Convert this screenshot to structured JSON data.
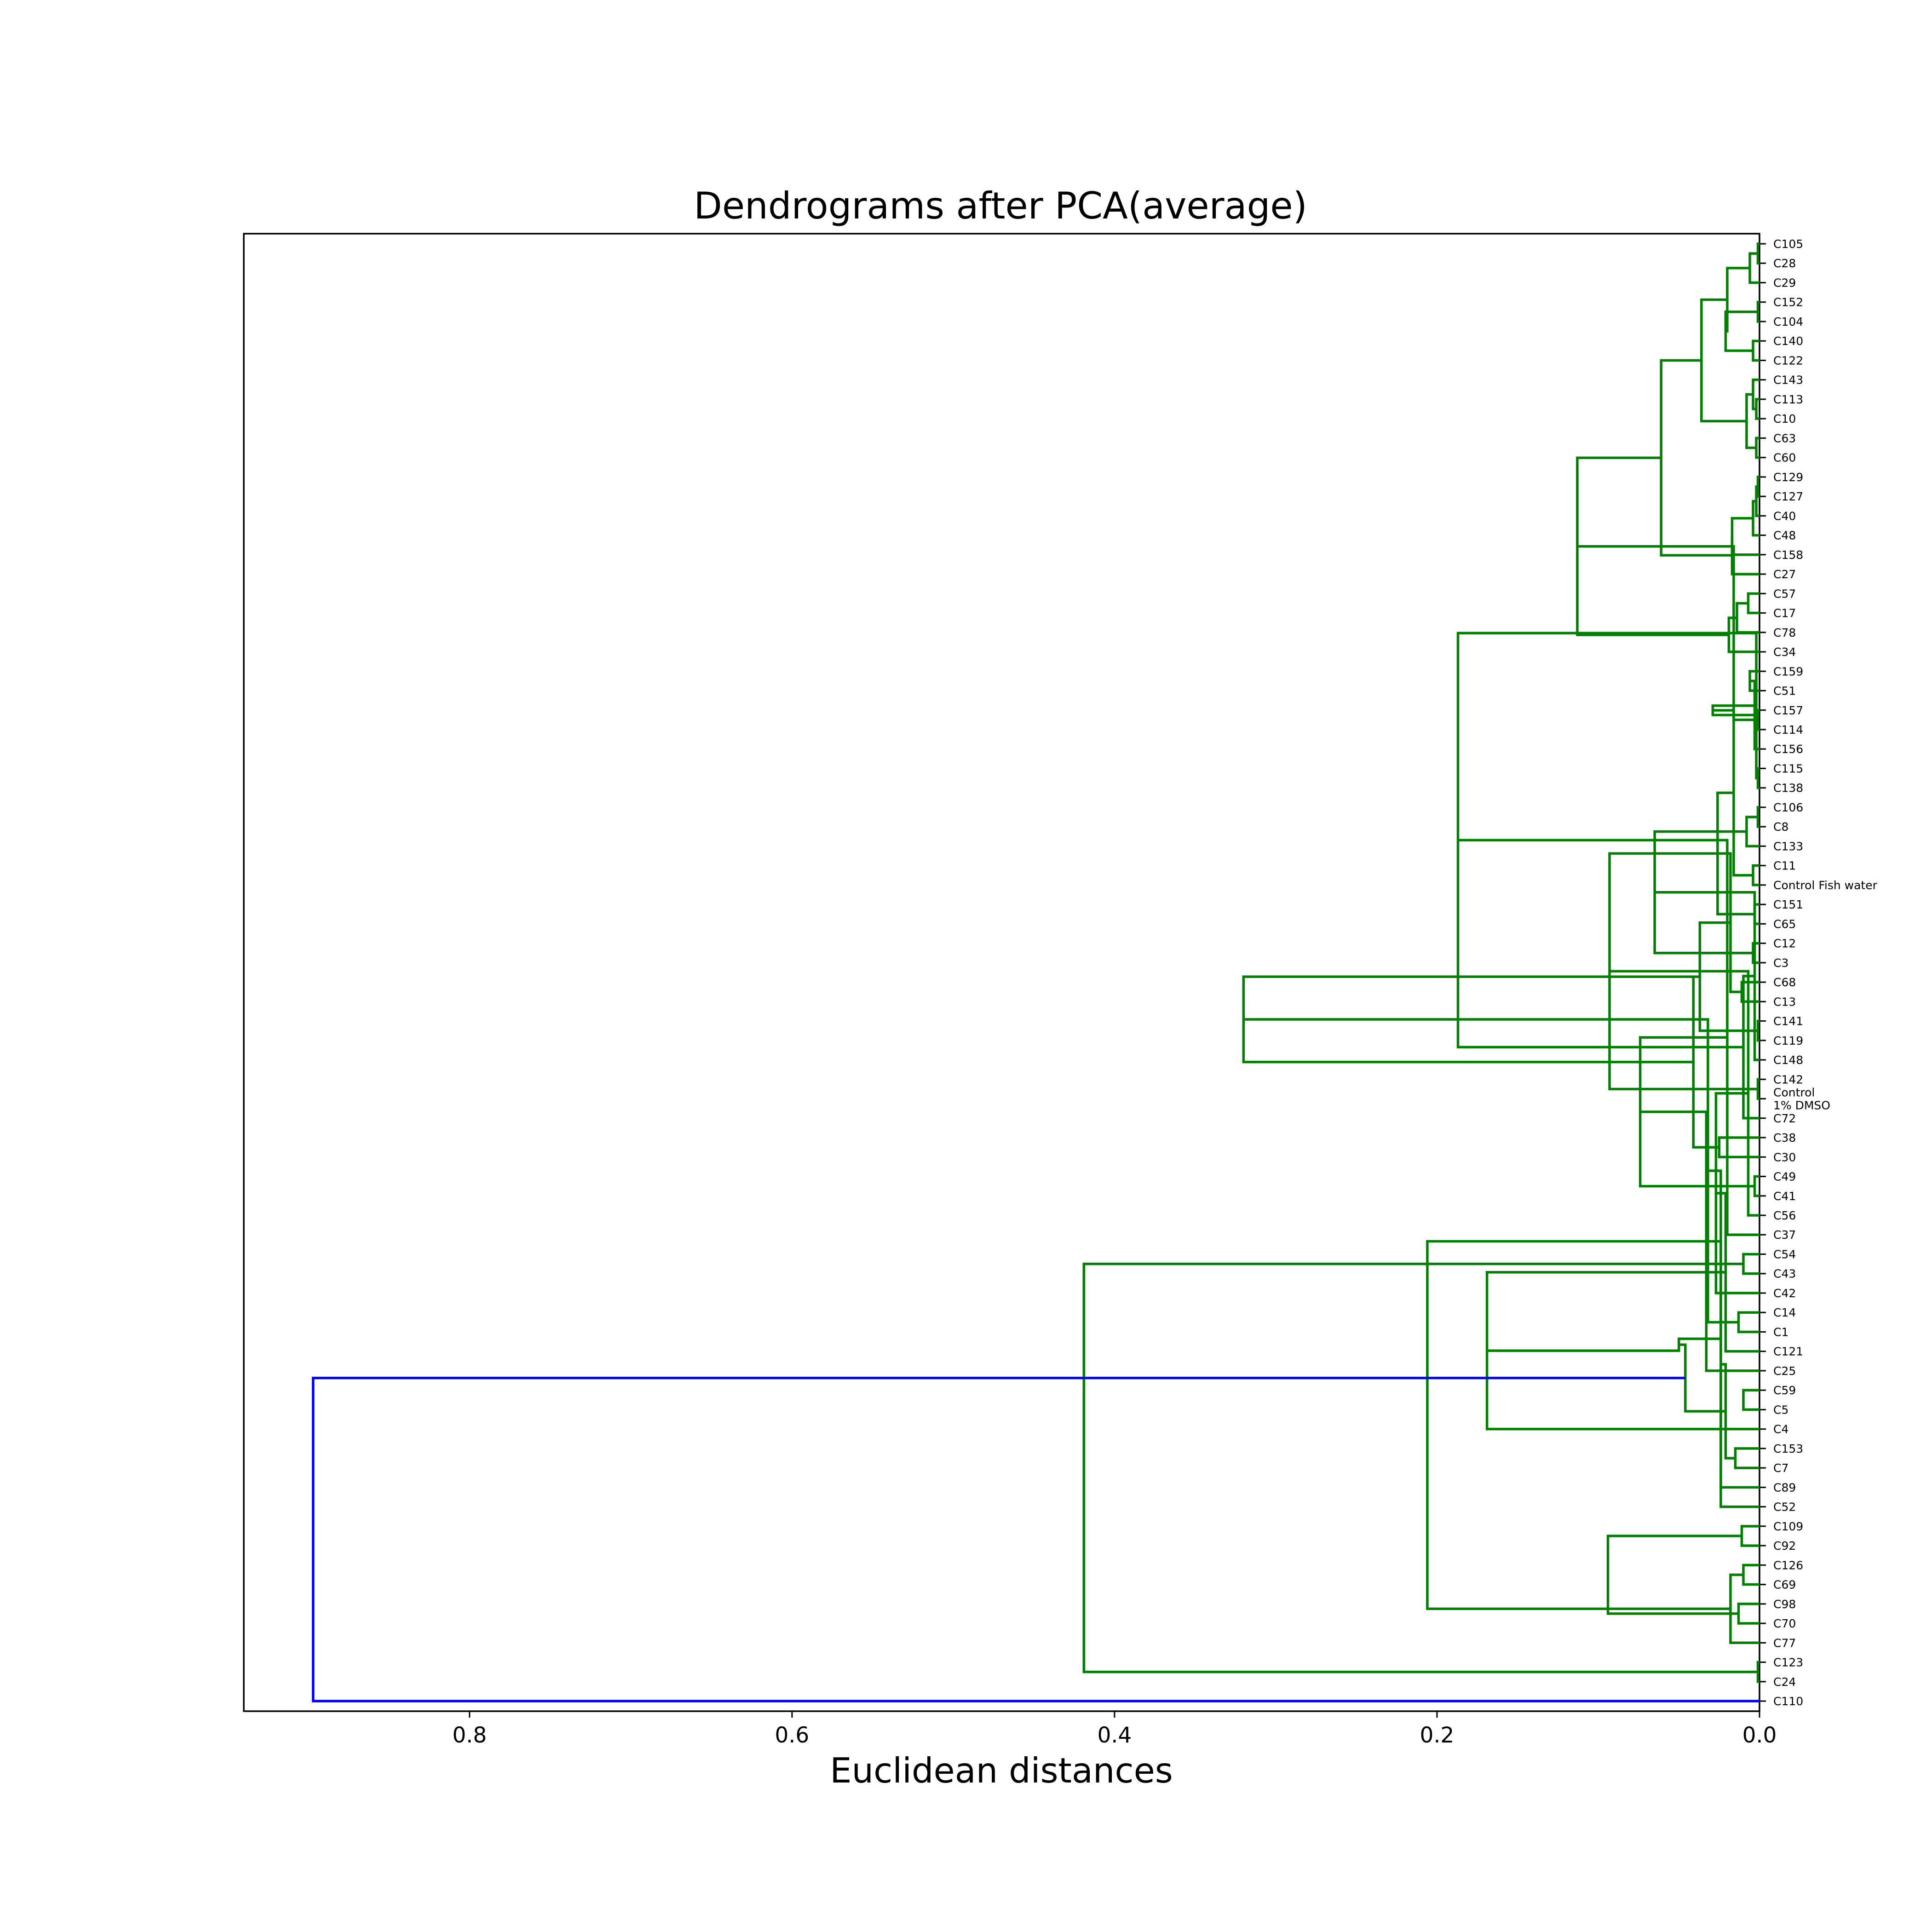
{
  "chart_data": {
    "type": "dendrogram",
    "orientation": "right",
    "title": "Dendrograms after PCA(average)",
    "xlabel": "Euclidean distances",
    "ylabel": "",
    "xlim": [
      0.94,
      0.0
    ],
    "x_ticks": [
      0.8,
      0.6,
      0.4,
      0.2,
      0.0
    ],
    "x_tick_labels": [
      "0.8",
      "0.6",
      "0.4",
      "0.2",
      "0.0"
    ],
    "grid": false,
    "colors": {
      "cluster": "#008000",
      "above_threshold": "#0000ff"
    },
    "leaves": [
      "C105",
      "C28",
      "C29",
      "C152",
      "C104",
      "C140",
      "C122",
      "C143",
      "C113",
      "C10",
      "C63",
      "C60",
      "C129",
      "C127",
      "C40",
      "C48",
      "C158",
      "C27",
      "C57",
      "C17",
      "C78",
      "C34",
      "C159",
      "C51",
      "C157",
      "C114",
      "C156",
      "C115",
      "C138",
      "C106",
      "C8",
      "C133",
      "C11",
      "Control Fish water",
      "C151",
      "C65",
      "C12",
      "C3",
      "C68",
      "C13",
      "C141",
      "C119",
      "C148",
      "C142",
      "Control\n1% DMSO",
      "C72",
      "C38",
      "C30",
      "C49",
      "C41",
      "C56",
      "C37",
      "C54",
      "C43",
      "C42",
      "C14",
      "C1",
      "C121",
      "C25",
      "C59",
      "C5",
      "C4",
      "C153",
      "C7",
      "C89",
      "C52",
      "C109",
      "C92",
      "C126",
      "C69",
      "C98",
      "C70",
      "C77",
      "C123",
      "C24",
      "C110"
    ],
    "merges": [
      [
        0,
        1,
        0.001,
        "#008000"
      ],
      [
        76,
        2,
        0.006,
        "#008000"
      ],
      [
        3,
        4,
        0.001,
        "#008000"
      ],
      [
        5,
        6,
        0.004,
        "#008000"
      ],
      [
        78,
        79,
        0.021,
        "#008000"
      ],
      [
        77,
        80,
        0.02,
        "#008000"
      ],
      [
        8,
        9,
        0.002,
        "#008000"
      ],
      [
        7,
        82,
        0.004,
        "#008000"
      ],
      [
        10,
        11,
        0.002,
        "#008000"
      ],
      [
        83,
        84,
        0.008,
        "#008000"
      ],
      [
        81,
        85,
        0.036,
        "#008000"
      ],
      [
        12,
        13,
        0.001,
        "#008000"
      ],
      [
        87,
        14,
        0.002,
        "#008000"
      ],
      [
        88,
        15,
        0.004,
        "#008000"
      ],
      [
        89,
        16,
        0.017,
        "#008000"
      ],
      [
        90,
        17,
        0.017,
        "#008000"
      ],
      [
        86,
        91,
        0.061,
        "#008000"
      ],
      [
        18,
        19,
        0.007,
        "#008000"
      ],
      [
        93,
        20,
        0.014,
        "#008000"
      ],
      [
        94,
        21,
        0.019,
        "#008000"
      ],
      [
        92,
        95,
        0.113,
        "#008000"
      ],
      [
        22,
        23,
        0.006,
        "#008000"
      ],
      [
        24,
        25,
        0.001,
        "#008000"
      ],
      [
        97,
        26,
        0.003,
        "#008000"
      ],
      [
        96,
        98,
        0.016,
        "#008000"
      ],
      [
        27,
        28,
        0.001,
        "#008000"
      ],
      [
        29,
        30,
        0.001,
        "#008000"
      ],
      [
        100,
        101,
        0.002,
        "#008000"
      ],
      [
        102,
        31,
        0.008,
        "#008000"
      ],
      [
        99,
        103,
        0.029,
        "#008000"
      ],
      [
        32,
        33,
        0.004,
        "#008000"
      ],
      [
        34,
        35,
        0.003,
        "#008000"
      ],
      [
        105,
        106,
        0.016,
        "#008000"
      ],
      [
        36,
        37,
        0.004,
        "#008000"
      ],
      [
        107,
        108,
        0.026,
        "#008000"
      ],
      [
        104,
        109,
        0.065,
        "#008000"
      ],
      [
        38,
        39,
        0.011,
        "#008000"
      ],
      [
        40,
        41,
        0.001,
        "#008000"
      ],
      [
        111,
        42,
        0.003,
        "#008000"
      ],
      [
        110,
        112,
        0.018,
        "#008000"
      ],
      [
        43,
        44,
        0.001,
        "#008000"
      ],
      [
        114,
        45,
        0.01,
        "#008000"
      ],
      [
        113,
        115,
        0.037,
        "#008000"
      ],
      [
        110,
        116,
        0.093,
        "#008000"
      ],
      [
        100,
        117,
        0.187,
        "#008000"
      ],
      [
        46,
        47,
        0.025,
        "#008000"
      ],
      [
        48,
        49,
        0.003,
        "#008000"
      ],
      [
        119,
        50,
        0.007,
        "#008000"
      ],
      [
        120,
        51,
        0.02,
        "#008000"
      ],
      [
        118,
        121,
        0.041,
        "#008000"
      ],
      [
        52,
        53,
        0.01,
        "#008000"
      ],
      [
        123,
        54,
        0.027,
        "#008000"
      ],
      [
        122,
        124,
        0.074,
        "#008000"
      ],
      [
        118,
        125,
        0.32,
        "#008000"
      ],
      [
        55,
        56,
        0.013,
        "#008000"
      ],
      [
        127,
        57,
        0.021,
        "#008000"
      ],
      [
        128,
        58,
        0.033,
        "#008000"
      ],
      [
        59,
        60,
        0.01,
        "#008000"
      ],
      [
        129,
        130,
        0.032,
        "#008000"
      ],
      [
        131,
        61,
        0.169,
        "#008000"
      ],
      [
        62,
        63,
        0.015,
        "#008000"
      ],
      [
        132,
        64,
        0.024,
        "#008000"
      ],
      [
        134,
        65,
        0.024,
        "#008000"
      ],
      [
        66,
        67,
        0.011,
        "#008000"
      ],
      [
        68,
        69,
        0.01,
        "#008000"
      ],
      [
        136,
        137,
        0.021,
        "#008000"
      ],
      [
        135,
        138,
        0.05,
        "#008000"
      ],
      [
        70,
        71,
        0.013,
        "#008000"
      ],
      [
        140,
        72,
        0.018,
        "#008000"
      ],
      [
        73,
        74,
        0.001,
        "#008000"
      ],
      [
        141,
        142,
        0.046,
        "#008000"
      ],
      [
        139,
        143,
        0.094,
        "#008000"
      ],
      [
        132,
        144,
        0.206,
        "#008000"
      ],
      [
        126,
        145,
        0.419,
        "#008000"
      ],
      [
        146,
        75,
        0.897,
        "#0000ff"
      ]
    ]
  }
}
